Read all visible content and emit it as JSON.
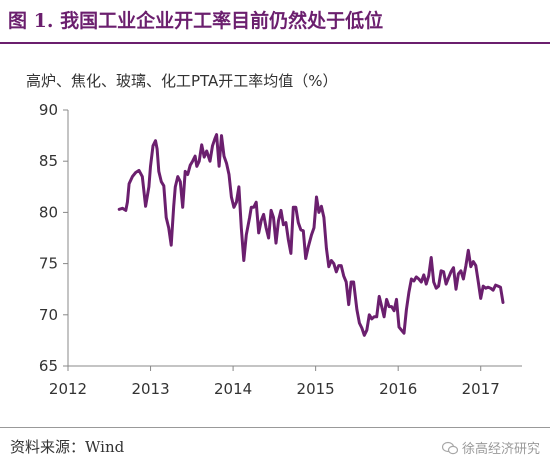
{
  "header": {
    "title": "图 1. 我国工业企业开工率目前仍然处于低位",
    "accent_color": "#6b1f6e"
  },
  "chart_data": {
    "type": "line",
    "title": "",
    "subtitle": "高炉、焦化、玻璃、化工PTA开工率均值（%）",
    "xlabel": "",
    "ylabel": "",
    "xlim": [
      2012,
      2017.5
    ],
    "ylim": [
      65,
      90
    ],
    "x_ticks": [
      "2012",
      "2013",
      "2014",
      "2015",
      "2016",
      "2017"
    ],
    "y_ticks": [
      "90",
      "85",
      "80",
      "75",
      "70",
      "65"
    ],
    "grid": false,
    "line_color": "#6b1f6e",
    "series": [
      {
        "x": [
          2012.62,
          2012.66,
          2012.7,
          2012.72,
          2012.74,
          2012.78,
          2012.82,
          2012.86,
          2012.9,
          2012.94,
          2012.98,
          2013.0,
          2013.03,
          2013.06,
          2013.08,
          2013.1,
          2013.13,
          2013.16,
          2013.19,
          2013.22,
          2013.25,
          2013.28,
          2013.3,
          2013.33,
          2013.36,
          2013.39,
          2013.42,
          2013.45,
          2013.48,
          2013.51,
          2013.54,
          2013.56,
          2013.59,
          2013.62,
          2013.65,
          2013.68,
          2013.72,
          2013.75,
          2013.78,
          2013.8,
          2013.83,
          2013.86,
          2013.89,
          2013.92,
          2013.95,
          2013.98,
          2014.01,
          2014.04,
          2014.07,
          2014.1,
          2014.13,
          2014.16,
          2014.2,
          2014.22,
          2014.25,
          2014.28,
          2014.31,
          2014.34,
          2014.37,
          2014.4,
          2014.43,
          2014.46,
          2014.49,
          2014.52,
          2014.55,
          2014.58,
          2014.61,
          2014.64,
          2014.67,
          2014.7,
          2014.73,
          2014.76,
          2014.79,
          2014.82,
          2014.85,
          2014.88,
          2014.91,
          2014.95,
          2014.98,
          2015.01,
          2015.04,
          2015.07,
          2015.1,
          2015.13,
          2015.16,
          2015.19,
          2015.22,
          2015.25,
          2015.28,
          2015.31,
          2015.34,
          2015.37,
          2015.4,
          2015.43,
          2015.46,
          2015.5,
          2015.53,
          2015.56,
          2015.59,
          2015.62,
          2015.65,
          2015.68,
          2015.71,
          2015.74,
          2015.77,
          2015.8,
          2015.83,
          2015.86,
          2015.89,
          2015.92,
          2015.95,
          2015.98,
          2016.01,
          2016.04,
          2016.07,
          2016.1,
          2016.13,
          2016.16,
          2016.19,
          2016.22,
          2016.25,
          2016.28,
          2016.31,
          2016.34,
          2016.37,
          2016.4,
          2016.43,
          2016.46,
          2016.49,
          2016.52,
          2016.55,
          2016.58,
          2016.61,
          2016.64,
          2016.67,
          2016.7,
          2016.73,
          2016.76,
          2016.79,
          2016.82,
          2016.85,
          2016.88,
          2016.91,
          2016.94,
          2016.97,
          2017.0,
          2017.03,
          2017.06,
          2017.09,
          2017.12,
          2017.15,
          2017.18,
          2017.21,
          2017.24,
          2017.27
        ],
        "y": [
          80.3,
          80.4,
          80.2,
          81.0,
          82.8,
          83.5,
          83.9,
          84.1,
          83.5,
          80.6,
          82.5,
          84.5,
          86.5,
          87.0,
          86.2,
          84.0,
          83.0,
          82.6,
          79.5,
          78.5,
          76.8,
          80.6,
          82.5,
          83.5,
          83.0,
          80.5,
          84.0,
          83.7,
          84.6,
          85.0,
          85.5,
          84.5,
          85.0,
          86.6,
          85.4,
          86.0,
          85.0,
          86.5,
          87.2,
          87.6,
          84.5,
          87.5,
          85.5,
          84.8,
          83.7,
          81.5,
          80.5,
          81.0,
          82.5,
          78.5,
          75.3,
          77.8,
          79.5,
          80.5,
          80.5,
          81.0,
          78.0,
          79.2,
          79.8,
          78.5,
          77.5,
          80.2,
          79.5,
          77.0,
          79.2,
          80.2,
          78.8,
          79.0,
          77.3,
          76.0,
          80.5,
          80.5,
          79.0,
          78.3,
          78.2,
          75.5,
          76.6,
          77.8,
          78.5,
          81.5,
          80.0,
          80.6,
          79.5,
          76.5,
          74.7,
          75.3,
          75.0,
          74.2,
          74.8,
          74.8,
          73.8,
          73.2,
          71.0,
          73.2,
          73.2,
          70.5,
          69.2,
          68.7,
          68.0,
          68.5,
          70.0,
          69.6,
          69.8,
          69.8,
          71.8,
          70.8,
          69.8,
          71.5,
          70.8,
          70.8,
          70.4,
          71.5,
          68.8,
          68.5,
          68.2,
          70.5,
          72.2,
          73.5,
          73.3,
          73.7,
          73.5,
          73.2,
          73.9,
          73.0,
          73.8,
          75.6,
          73.2,
          72.6,
          72.8,
          74.3,
          74.2,
          73.0,
          73.6,
          74.2,
          74.6,
          72.5,
          74.0,
          74.3,
          73.5,
          74.8,
          76.3,
          74.7,
          75.2,
          74.8,
          73.2,
          71.6,
          72.8,
          72.6,
          72.7,
          72.6,
          72.4,
          72.9,
          72.8,
          72.7,
          71.2
        ]
      }
    ]
  },
  "footer": {
    "source": "资料来源：Wind",
    "brand": "徐高经济研究"
  }
}
